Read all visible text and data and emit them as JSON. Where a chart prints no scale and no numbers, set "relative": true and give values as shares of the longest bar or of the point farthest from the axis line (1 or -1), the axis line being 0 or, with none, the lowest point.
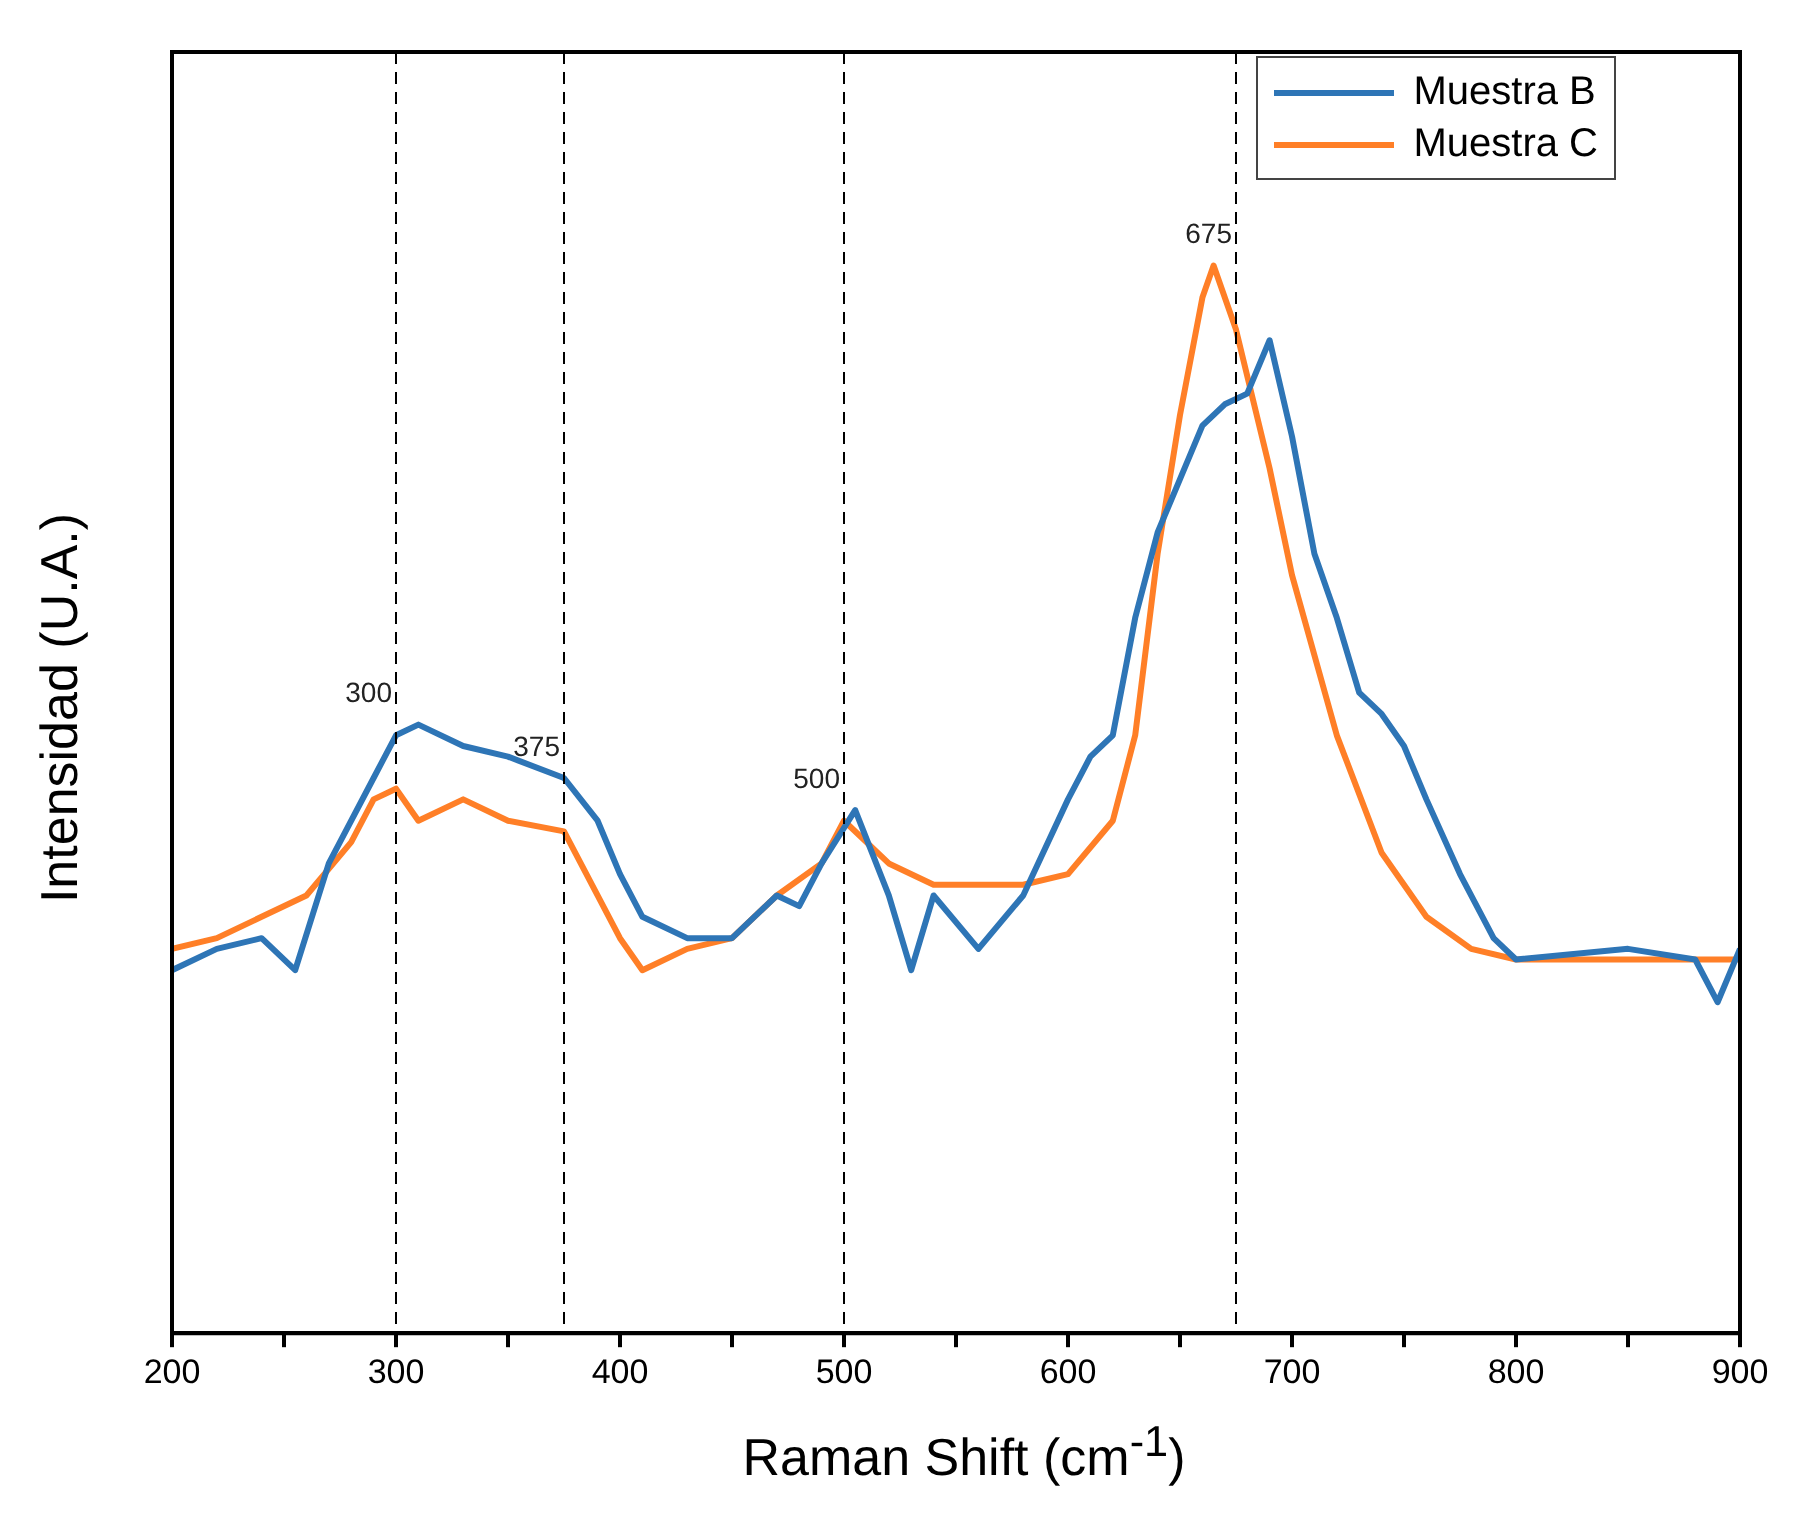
{
  "chart_data": {
    "type": "line",
    "xlabel": "Raman Shift (cm$^{-1}$)",
    "ylabel": "Intensidad (U.A.)",
    "relative": true,
    "xlim": [
      200,
      900
    ],
    "xticks": [
      200,
      {
        "value": 250,
        "label": null
      },
      300,
      {
        "value": 350,
        "label": null
      },
      400,
      {
        "value": 450,
        "label": null
      },
      500,
      {
        "value": 550,
        "label": null
      },
      600,
      {
        "value": 650,
        "label": null
      },
      700,
      {
        "value": 750,
        "label": null
      },
      800,
      {
        "value": 850,
        "label": null
      },
      900
    ],
    "grid": false,
    "legend": "top right",
    "marker": "none",
    "line_style": "solid",
    "ref_lines": [
      {
        "axis": "x",
        "value": 300,
        "label": "300",
        "color": "#000000",
        "line_style": "dashed"
      },
      {
        "axis": "x",
        "value": 375,
        "label": "375",
        "color": "#000000",
        "line_style": "dashed"
      },
      {
        "axis": "x",
        "value": 500,
        "label": "500",
        "color": "#000000",
        "line_style": "dashed"
      },
      {
        "axis": "x",
        "value": 675,
        "label": "675",
        "color": "#000000",
        "line_style": "dashed"
      }
    ],
    "series": [
      {
        "name": "Muestra B",
        "color": "#2e75b6",
        "x": [
          200,
          220,
          240,
          255,
          270,
          290,
          300,
          310,
          330,
          350,
          375,
          390,
          400,
          410,
          430,
          450,
          470,
          480,
          490,
          505,
          520,
          530,
          540,
          560,
          580,
          600,
          610,
          620,
          630,
          640,
          650,
          660,
          670,
          680,
          690,
          700,
          710,
          720,
          730,
          740,
          750,
          760,
          775,
          790,
          800,
          850,
          880,
          890,
          900
        ],
        "values": [
          0.34,
          0.36,
          0.37,
          0.34,
          0.44,
          0.52,
          0.56,
          0.57,
          0.55,
          0.54,
          0.52,
          0.48,
          0.43,
          0.39,
          0.37,
          0.37,
          0.41,
          0.4,
          0.44,
          0.49,
          0.41,
          0.34,
          0.41,
          0.36,
          0.41,
          0.5,
          0.54,
          0.56,
          0.67,
          0.75,
          0.8,
          0.85,
          0.87,
          0.88,
          0.93,
          0.84,
          0.73,
          0.67,
          0.6,
          0.58,
          0.55,
          0.5,
          0.43,
          0.37,
          0.35,
          0.36,
          0.35,
          0.31,
          0.36
        ]
      },
      {
        "name": "Muestra C",
        "color": "#ff7f27",
        "x": [
          200,
          220,
          240,
          260,
          280,
          290,
          300,
          310,
          330,
          350,
          375,
          400,
          410,
          430,
          450,
          470,
          490,
          500,
          520,
          540,
          560,
          580,
          600,
          620,
          630,
          640,
          650,
          660,
          665,
          675,
          690,
          700,
          720,
          740,
          760,
          780,
          800,
          850,
          900
        ],
        "values": [
          0.36,
          0.37,
          0.39,
          0.41,
          0.46,
          0.5,
          0.51,
          0.48,
          0.5,
          0.48,
          0.47,
          0.37,
          0.34,
          0.36,
          0.37,
          0.41,
          0.44,
          0.48,
          0.44,
          0.42,
          0.42,
          0.42,
          0.43,
          0.48,
          0.56,
          0.73,
          0.86,
          0.97,
          1,
          0.94,
          0.81,
          0.71,
          0.56,
          0.45,
          0.39,
          0.36,
          0.35,
          0.35,
          0.35
        ]
      }
    ]
  }
}
